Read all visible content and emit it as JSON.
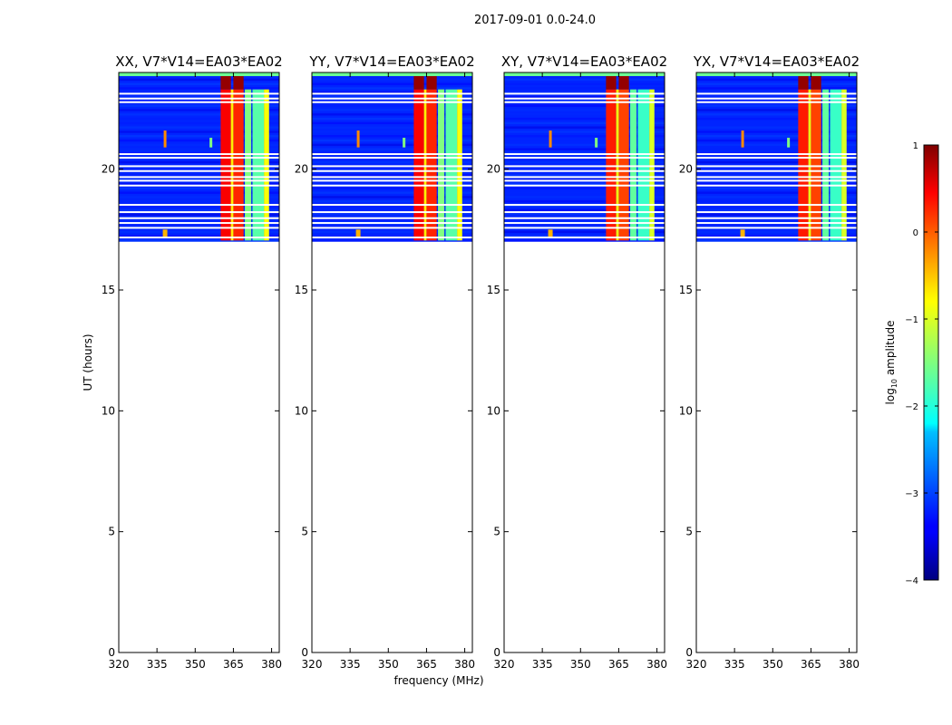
{
  "figure_title": "2017-09-01 0.0-24.0",
  "chart_data": {
    "type": "heatmap",
    "title": "2017-09-01 0.0-24.0",
    "xlabel": "frequency (MHz)",
    "ylabel": "UT (hours)",
    "xlim": [
      320,
      383
    ],
    "ylim": [
      0,
      24
    ],
    "xticks": [
      320,
      335,
      350,
      365,
      380
    ],
    "yticks": [
      0,
      5,
      10,
      15,
      20
    ],
    "data_start_hour": 17.0,
    "data_end_hour": 24.0,
    "flagged_hours": [
      23.1,
      22.9,
      22.75,
      20.6,
      20.45,
      20.1,
      19.9,
      19.65,
      19.5,
      19.3,
      18.5,
      18.2,
      17.95,
      17.75,
      17.55,
      17.15
    ],
    "panels": [
      {
        "label": "XX, V7*V14=EA03*EA02",
        "correlation": "XX"
      },
      {
        "label": "YY, V7*V14=EA03*EA02",
        "correlation": "YY"
      },
      {
        "label": "XY, V7*V14=EA03*EA02",
        "correlation": "XY"
      },
      {
        "label": "YX, V7*V14=EA03*EA02",
        "correlation": "YX"
      }
    ],
    "rfi_channels": [
      {
        "f0": 360,
        "f1": 364,
        "level": 0.4
      },
      {
        "f0": 364,
        "f1": 365,
        "level": -0.8
      },
      {
        "f0": 365,
        "f1": 369,
        "level": 0.2
      },
      {
        "f0": 369.5,
        "f1": 372,
        "level": -1.5
      },
      {
        "f0": 372.5,
        "f1": 377,
        "level": -1.7
      },
      {
        "f0": 377,
        "f1": 379,
        "level": -0.9
      }
    ],
    "colorbar": {
      "label": "log10 amplitude",
      "min": -4,
      "max": 1,
      "ticks": [
        1,
        0,
        -1,
        -2,
        -3,
        -4
      ],
      "colormap": "jet"
    }
  }
}
